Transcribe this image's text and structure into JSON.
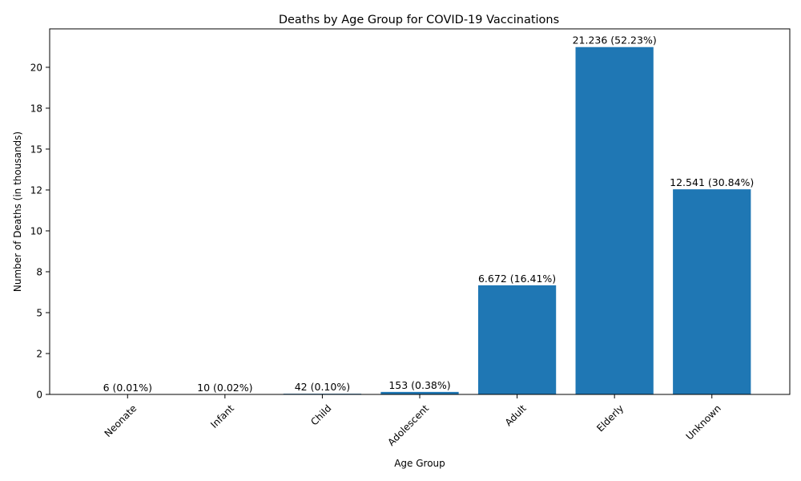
{
  "chart_data": {
    "type": "bar",
    "title": "Deaths by Age Group for COVID-19 Vaccinations",
    "xlabel": "Age Group",
    "ylabel": "Number of Deaths (in thousands)",
    "categories": [
      "Neonate",
      "Infant",
      "Child",
      "Adolescent",
      "Adult",
      "Elderly",
      "Unknown"
    ],
    "values": [
      0.006,
      0.01,
      0.042,
      0.153,
      6.672,
      21.236,
      12.541
    ],
    "data_labels": [
      "6 (0.01%)",
      "10 (0.02%)",
      "42 (0.10%)",
      "153 (0.38%)",
      "6.672 (16.41%)",
      "21.236 (52.23%)",
      "12.541 (30.84%)"
    ],
    "y_ticks": [
      0,
      2.5,
      5,
      7.5,
      10,
      12.5,
      15,
      17.5,
      20
    ],
    "y_tick_labels": [
      "0",
      "2",
      "5",
      "8",
      "10",
      "12",
      "15",
      "18",
      "20"
    ],
    "ylim": [
      0,
      21.24
    ],
    "grid": false,
    "legend": "none",
    "bar_color": "#1f77b4"
  }
}
